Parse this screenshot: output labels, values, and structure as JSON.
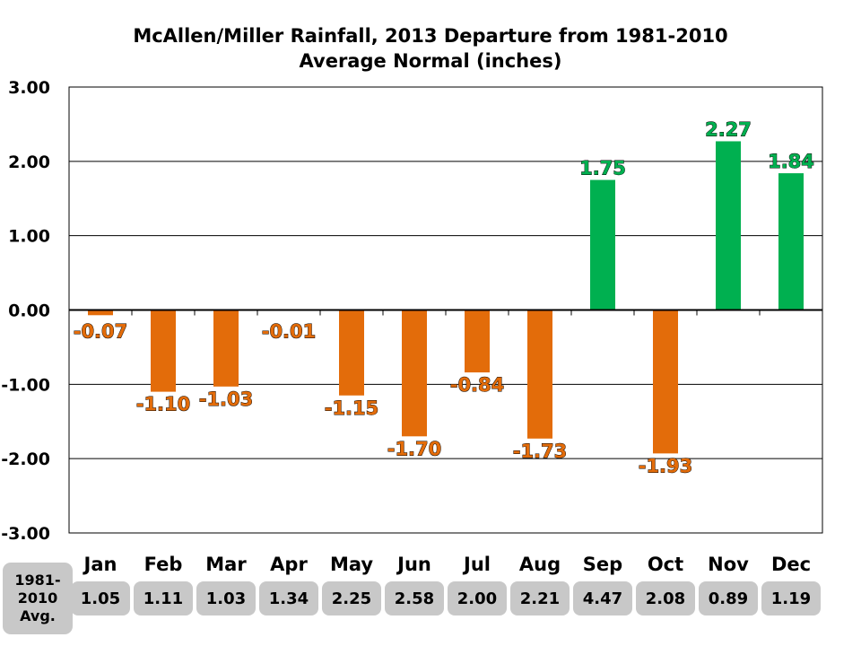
{
  "chart_data": {
    "type": "bar",
    "title_line1": "McAllen/Miller Rainfall, 2013 Departure from 1981-2010",
    "title_line2": "Average Normal (inches)",
    "categories": [
      "Jan",
      "Feb",
      "Mar",
      "Apr",
      "May",
      "Jun",
      "Jul",
      "Aug",
      "Sep",
      "Oct",
      "Nov",
      "Dec"
    ],
    "values": [
      -0.07,
      -1.1,
      -1.03,
      -0.01,
      -1.15,
      -1.7,
      -0.84,
      -1.73,
      1.75,
      -1.93,
      2.27,
      1.84
    ],
    "value_labels": [
      "-0.07",
      "-1.10",
      "-1.03",
      "-0.01",
      "-1.15",
      "-1.70",
      "-0.84",
      "-1.73",
      "1.75",
      "-1.93",
      "2.27",
      "1.84"
    ],
    "ylim": [
      -3,
      3
    ],
    "yticks": [
      "3.00",
      "2.00",
      "1.00",
      "0.00",
      "-1.00",
      "-2.00",
      "-3.00"
    ],
    "grid": true,
    "legend": "none",
    "colors": {
      "positive": "#00b050",
      "negative": "#e36c0a"
    }
  },
  "normals_row": {
    "caption": "1981-\n2010\nAvg.",
    "values": [
      "1.05",
      "1.11",
      "1.03",
      "1.34",
      "2.25",
      "2.58",
      "2.00",
      "2.21",
      "4.47",
      "2.08",
      "0.89",
      "1.19"
    ]
  }
}
